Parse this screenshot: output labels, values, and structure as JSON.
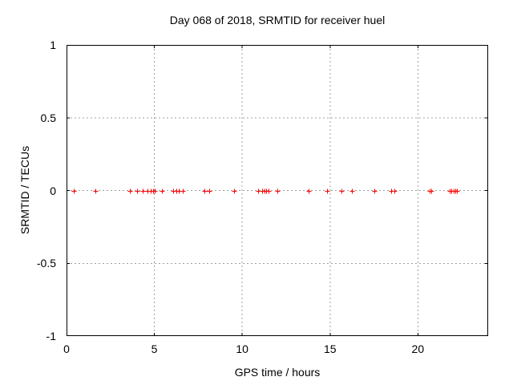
{
  "window": {
    "background": "#ffffff"
  },
  "chart_data": {
    "type": "scatter",
    "title": "Day 068 of 2018, SRMTID for receiver huel",
    "xlabel": "GPS time / hours",
    "ylabel": "SRMTID / TECUs",
    "xlim": [
      0,
      24
    ],
    "ylim": [
      -1,
      1
    ],
    "xticks": [
      0,
      5,
      10,
      15,
      20
    ],
    "xtick_labels": [
      "0",
      "5",
      "10",
      "15",
      "20"
    ],
    "yticks": [
      1,
      0.5,
      0,
      -0.5,
      -1
    ],
    "ytick_labels": [
      "1",
      "0.5",
      "0",
      "-0.5",
      "-1"
    ],
    "grid": true,
    "grid_style": "dotted",
    "legend": "none",
    "series": [
      {
        "name": "SRMTID",
        "marker": "plus",
        "color": "#ff0000",
        "x": [
          0.41,
          1.64,
          3.6,
          4.01,
          4.33,
          4.61,
          4.79,
          4.92,
          5.02,
          5.43,
          6.06,
          6.25,
          6.38,
          6.61,
          7.84,
          8.12,
          9.53,
          10.9,
          11.13,
          11.26,
          11.36,
          11.49,
          11.99,
          13.77,
          14.82,
          15.65,
          16.24,
          17.51,
          18.49,
          18.65,
          20.68,
          20.75,
          21.8,
          21.89,
          22.03,
          22.12,
          22.21
        ],
        "y": [
          0,
          0,
          0,
          0,
          0,
          0,
          0,
          0,
          0,
          0,
          0,
          0,
          0,
          0,
          0,
          0,
          0,
          0,
          0,
          0,
          0,
          0,
          0,
          0,
          0,
          0,
          0,
          0,
          0,
          0,
          0,
          0,
          0,
          0,
          0,
          0,
          0
        ]
      }
    ]
  },
  "colors": {
    "border": "#000000",
    "grid": "#a0a0a0",
    "text": "#000000",
    "marker": "#ff0000"
  }
}
